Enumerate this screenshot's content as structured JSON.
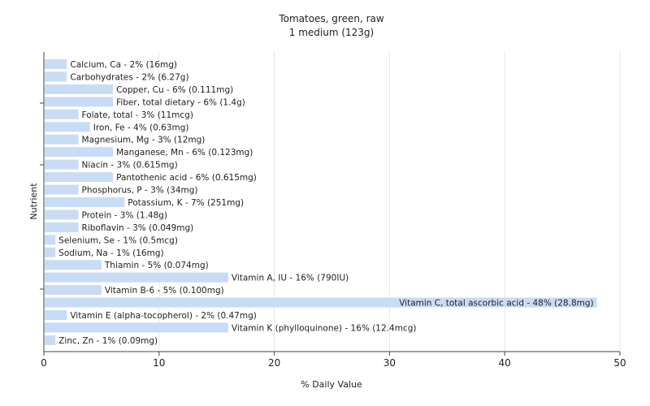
{
  "chart_data": {
    "type": "bar",
    "orientation": "horizontal",
    "title": "Tomatoes, green, raw",
    "subtitle": "1 medium (123g)",
    "xlabel": "% Daily Value",
    "ylabel": "Nutrient",
    "xlim": [
      0,
      50
    ],
    "xticks": [
      "0",
      "10",
      "20",
      "30",
      "40",
      "50"
    ],
    "grid": true,
    "bar_color": "#c9dcf6",
    "categories": [
      "Calcium, Ca",
      "Carbohydrates",
      "Copper, Cu",
      "Fiber, total dietary",
      "Folate, total",
      "Iron, Fe",
      "Magnesium, Mg",
      "Manganese, Mn",
      "Niacin",
      "Pantothenic acid",
      "Phosphorus, P",
      "Potassium, K",
      "Protein",
      "Riboflavin",
      "Selenium, Se",
      "Sodium, Na",
      "Thiamin",
      "Vitamin A, IU",
      "Vitamin B-6",
      "Vitamin C, total ascorbic acid",
      "Vitamin E (alpha-tocopherol)",
      "Vitamin K (phylloquinone)",
      "Zinc, Zn"
    ],
    "values": [
      2,
      2,
      6,
      6,
      3,
      4,
      3,
      6,
      3,
      6,
      3,
      7,
      3,
      3,
      1,
      1,
      5,
      16,
      5,
      48,
      2,
      16,
      1
    ],
    "labels": [
      "Calcium, Ca - 2% (16mg)",
      "Carbohydrates - 2% (6.27g)",
      "Copper, Cu - 6% (0.111mg)",
      "Fiber, total dietary - 6% (1.4g)",
      "Folate, total - 3% (11mcg)",
      "Iron, Fe - 4% (0.63mg)",
      "Magnesium, Mg - 3% (12mg)",
      "Manganese, Mn - 6% (0.123mg)",
      "Niacin - 3% (0.615mg)",
      "Pantothenic acid - 6% (0.615mg)",
      "Phosphorus, P - 3% (34mg)",
      "Potassium, K - 7% (251mg)",
      "Protein - 3% (1.48g)",
      "Riboflavin - 3% (0.049mg)",
      "Selenium, Se - 1% (0.5mcg)",
      "Sodium, Na - 1% (16mg)",
      "Thiamin - 5% (0.074mg)",
      "Vitamin A, IU - 16% (790IU)",
      "Vitamin B-6 - 5% (0.100mg)",
      "Vitamin C, total ascorbic acid - 48% (28.8mg)",
      "Vitamin E (alpha-tocopherol) - 2% (0.47mg)",
      "Vitamin K (phylloquinone) - 16% (12.4mcg)",
      "Zinc, Zn - 1% (0.09mg)"
    ]
  }
}
